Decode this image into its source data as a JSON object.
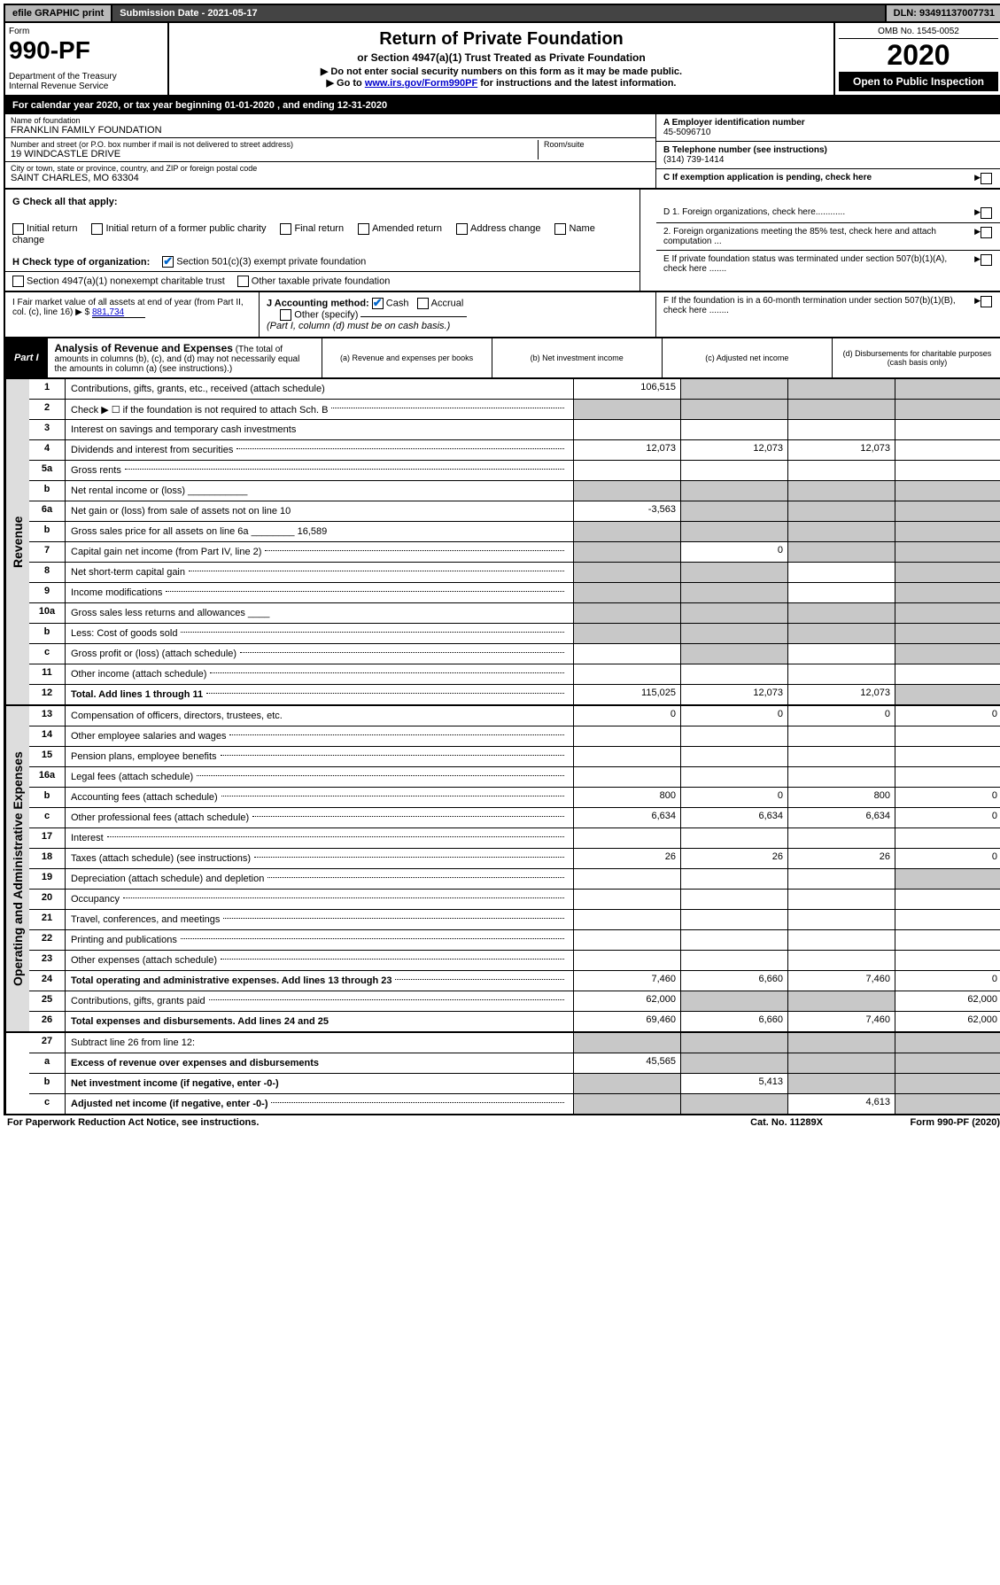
{
  "topbar": {
    "efile": "efile GRAPHIC print",
    "submission": "Submission Date - 2021-05-17",
    "dln": "DLN: 93491137007731"
  },
  "header": {
    "form_label": "Form",
    "form_num": "990-PF",
    "dept": "Department of the Treasury\nInternal Revenue Service",
    "title": "Return of Private Foundation",
    "subtitle": "or Section 4947(a)(1) Trust Treated as Private Foundation",
    "note1": "▶ Do not enter social security numbers on this form as it may be made public.",
    "note2_pre": "▶ Go to ",
    "note2_link": "www.irs.gov/Form990PF",
    "note2_post": " for instructions and the latest information.",
    "omb": "OMB No. 1545-0052",
    "year": "2020",
    "open": "Open to Public Inspection"
  },
  "cal": "For calendar year 2020, or tax year beginning 01-01-2020                                    , and ending 12-31-2020",
  "info": {
    "name_label": "Name of foundation",
    "name": "FRANKLIN FAMILY FOUNDATION",
    "addr_label": "Number and street (or P.O. box number if mail is not delivered to street address)",
    "addr": "19 WINDCASTLE DRIVE",
    "room_label": "Room/suite",
    "city_label": "City or town, state or province, country, and ZIP or foreign postal code",
    "city": "SAINT CHARLES, MO  63304",
    "a_label": "A Employer identification number",
    "a_val": "45-5096710",
    "b_label": "B Telephone number (see instructions)",
    "b_val": "(314) 739-1414",
    "c_label": "C If exemption application is pending, check here",
    "d1": "D 1. Foreign organizations, check here............",
    "d2": "2. Foreign organizations meeting the 85% test, check here and attach computation ...",
    "e_label": "E  If private foundation status was terminated under section 507(b)(1)(A), check here .......",
    "f_label": "F  If the foundation is in a 60-month termination under section 507(b)(1)(B), check here ........"
  },
  "g": {
    "label": "G Check all that apply:",
    "items": [
      "Initial return",
      "Initial return of a former public charity",
      "Final return",
      "Amended return",
      "Address change",
      "Name change"
    ]
  },
  "h": {
    "label": "H Check type of organization:",
    "opt1": "Section 501(c)(3) exempt private foundation",
    "opt2": "Section 4947(a)(1) nonexempt charitable trust",
    "opt3": "Other taxable private foundation"
  },
  "i": {
    "label": "I Fair market value of all assets at end of year (from Part II, col. (c), line 16)",
    "val": "881,734"
  },
  "j": {
    "label": "J Accounting method:",
    "cash": "Cash",
    "accrual": "Accrual",
    "other": "Other (specify)",
    "note": "(Part I, column (d) must be on cash basis.)"
  },
  "part1": {
    "label": "Part I",
    "title": "Analysis of Revenue and Expenses",
    "note": "(The total of amounts in columns (b), (c), and (d) may not necessarily equal the amounts in column (a) (see instructions).)",
    "col_a": "(a)   Revenue and expenses per books",
    "col_b": "(b)   Net investment income",
    "col_c": "(c)   Adjusted net income",
    "col_d": "(d)   Disbursements for charitable purposes (cash basis only)"
  },
  "sections": {
    "revenue": "Revenue",
    "opex": "Operating and Administrative Expenses"
  },
  "rows": [
    {
      "n": "1",
      "d": "Contributions, gifts, grants, etc., received (attach schedule)",
      "a": "106,515",
      "shade": [
        "b",
        "c",
        "d"
      ]
    },
    {
      "n": "2",
      "d": "Check ▶ ☐ if the foundation is not required to attach Sch. B",
      "dots": true,
      "shade": [
        "a",
        "b",
        "c",
        "d"
      ]
    },
    {
      "n": "3",
      "d": "Interest on savings and temporary cash investments"
    },
    {
      "n": "4",
      "d": "Dividends and interest from securities",
      "dots": true,
      "a": "12,073",
      "b": "12,073",
      "c": "12,073"
    },
    {
      "n": "5a",
      "d": "Gross rents",
      "dots": true
    },
    {
      "n": "b",
      "d": "Net rental income or (loss)  ___________",
      "shade": [
        "a",
        "b",
        "c",
        "d"
      ]
    },
    {
      "n": "6a",
      "d": "Net gain or (loss) from sale of assets not on line 10",
      "a": "-3,563",
      "shade": [
        "b",
        "c",
        "d"
      ]
    },
    {
      "n": "b",
      "d": "Gross sales price for all assets on line 6a ________ 16,589",
      "shade": [
        "a",
        "b",
        "c",
        "d"
      ]
    },
    {
      "n": "7",
      "d": "Capital gain net income (from Part IV, line 2)",
      "dots": true,
      "b": "0",
      "shade": [
        "a",
        "c",
        "d"
      ]
    },
    {
      "n": "8",
      "d": "Net short-term capital gain",
      "dots": true,
      "shade": [
        "a",
        "b",
        "d"
      ]
    },
    {
      "n": "9",
      "d": "Income modifications",
      "dots": true,
      "shade": [
        "a",
        "b",
        "d"
      ]
    },
    {
      "n": "10a",
      "d": "Gross sales less returns and allowances  ____",
      "shade": [
        "a",
        "b",
        "c",
        "d"
      ]
    },
    {
      "n": "b",
      "d": "Less: Cost of goods sold",
      "dots": true,
      "shade": [
        "a",
        "b",
        "c",
        "d"
      ]
    },
    {
      "n": "c",
      "d": "Gross profit or (loss) (attach schedule)",
      "dots": true,
      "shade": [
        "b",
        "d"
      ]
    },
    {
      "n": "11",
      "d": "Other income (attach schedule)",
      "dots": true
    },
    {
      "n": "12",
      "d": "Total. Add lines 1 through 11",
      "dots": true,
      "bold": true,
      "a": "115,025",
      "b": "12,073",
      "c": "12,073",
      "shade": [
        "d"
      ]
    }
  ],
  "rows2": [
    {
      "n": "13",
      "d": "Compensation of officers, directors, trustees, etc.",
      "a": "0",
      "b": "0",
      "c": "0",
      "dd": "0"
    },
    {
      "n": "14",
      "d": "Other employee salaries and wages",
      "dots": true
    },
    {
      "n": "15",
      "d": "Pension plans, employee benefits",
      "dots": true
    },
    {
      "n": "16a",
      "d": "Legal fees (attach schedule)",
      "dots": true
    },
    {
      "n": "b",
      "d": "Accounting fees (attach schedule)",
      "dots": true,
      "a": "800",
      "b": "0",
      "c": "800",
      "dd": "0"
    },
    {
      "n": "c",
      "d": "Other professional fees (attach schedule)",
      "dots": true,
      "a": "6,634",
      "b": "6,634",
      "c": "6,634",
      "dd": "0"
    },
    {
      "n": "17",
      "d": "Interest",
      "dots": true
    },
    {
      "n": "18",
      "d": "Taxes (attach schedule) (see instructions)",
      "dots": true,
      "a": "26",
      "b": "26",
      "c": "26",
      "dd": "0"
    },
    {
      "n": "19",
      "d": "Depreciation (attach schedule) and depletion",
      "dots": true,
      "shade": [
        "d"
      ]
    },
    {
      "n": "20",
      "d": "Occupancy",
      "dots": true
    },
    {
      "n": "21",
      "d": "Travel, conferences, and meetings",
      "dots": true
    },
    {
      "n": "22",
      "d": "Printing and publications",
      "dots": true
    },
    {
      "n": "23",
      "d": "Other expenses (attach schedule)",
      "dots": true
    },
    {
      "n": "24",
      "d": "Total operating and administrative expenses. Add lines 13 through 23",
      "dots": true,
      "bold": true,
      "a": "7,460",
      "b": "6,660",
      "c": "7,460",
      "dd": "0"
    },
    {
      "n": "25",
      "d": "Contributions, gifts, grants paid",
      "dots": true,
      "a": "62,000",
      "dd": "62,000",
      "shade": [
        "b",
        "c"
      ]
    },
    {
      "n": "26",
      "d": "Total expenses and disbursements. Add lines 24 and 25",
      "bold": true,
      "a": "69,460",
      "b": "6,660",
      "c": "7,460",
      "dd": "62,000"
    }
  ],
  "rows3": [
    {
      "n": "27",
      "d": "Subtract line 26 from line 12:",
      "shade": [
        "a",
        "b",
        "c",
        "d"
      ]
    },
    {
      "n": "a",
      "d": "Excess of revenue over expenses and disbursements",
      "bold": true,
      "a": "45,565",
      "shade": [
        "b",
        "c",
        "d"
      ]
    },
    {
      "n": "b",
      "d": "Net investment income (if negative, enter -0-)",
      "bold": true,
      "b": "5,413",
      "shade": [
        "a",
        "c",
        "d"
      ]
    },
    {
      "n": "c",
      "d": "Adjusted net income (if negative, enter -0-)",
      "bold": true,
      "dots": true,
      "c": "4,613",
      "shade": [
        "a",
        "b",
        "d"
      ]
    }
  ],
  "footer": {
    "left": "For Paperwork Reduction Act Notice, see instructions.",
    "mid": "Cat. No. 11289X",
    "right": "Form 990-PF (2020)"
  }
}
